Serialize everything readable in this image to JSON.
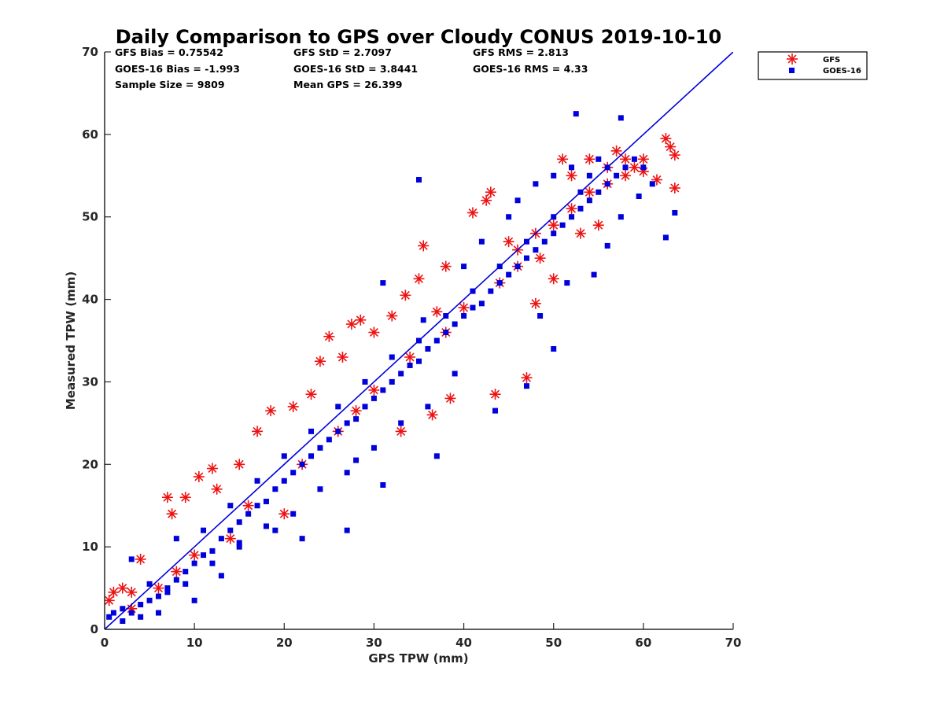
{
  "chart_data": {
    "type": "scatter",
    "title": "Daily Comparison to GPS over Cloudy CONUS 2019-10-10",
    "xlabel": "GPS TPW (mm)",
    "ylabel": "Measured TPW (mm)",
    "xlim": [
      0,
      70
    ],
    "ylim": [
      0,
      70
    ],
    "xticks": [
      "0",
      "10",
      "20",
      "30",
      "40",
      "50",
      "60",
      "70"
    ],
    "yticks": [
      "0",
      "10",
      "20",
      "30",
      "40",
      "50",
      "60",
      "70"
    ],
    "grid": false,
    "legend_position": "outside-top-right",
    "one_to_one_line": true,
    "line_color": "#0000dd",
    "series": [
      {
        "name": "GFS",
        "marker": "asterisk",
        "color": "#ee1111",
        "points": [
          [
            0.5,
            3.5
          ],
          [
            1,
            4.5
          ],
          [
            2,
            5
          ],
          [
            3,
            4.5
          ],
          [
            4,
            8.5
          ],
          [
            7,
            16
          ],
          [
            7.5,
            14
          ],
          [
            10.5,
            18.5
          ],
          [
            12,
            19.5
          ],
          [
            12.5,
            17
          ],
          [
            9,
            16
          ],
          [
            15,
            20
          ],
          [
            17,
            24
          ],
          [
            18.5,
            26.5
          ],
          [
            21,
            27
          ],
          [
            23,
            28.5
          ],
          [
            24,
            32.5
          ],
          [
            25,
            35.5
          ],
          [
            26.5,
            33
          ],
          [
            27.5,
            37
          ],
          [
            28.5,
            37.5
          ],
          [
            30,
            36
          ],
          [
            32,
            38
          ],
          [
            33.5,
            40.5
          ],
          [
            35,
            42.5
          ],
          [
            35.5,
            46.5
          ],
          [
            37,
            38.5
          ],
          [
            38,
            44
          ],
          [
            38.5,
            28
          ],
          [
            41,
            50.5
          ],
          [
            42.5,
            52
          ],
          [
            43,
            53
          ],
          [
            43.5,
            28.5
          ],
          [
            45,
            47
          ],
          [
            46,
            44
          ],
          [
            47,
            30.5
          ],
          [
            48,
            39.5
          ],
          [
            48.5,
            45
          ],
          [
            50,
            42.5
          ],
          [
            51,
            57
          ],
          [
            52,
            55
          ],
          [
            53,
            48
          ],
          [
            54,
            57
          ],
          [
            55,
            49
          ],
          [
            56,
            56
          ],
          [
            57,
            58
          ],
          [
            58,
            55
          ],
          [
            59,
            56
          ],
          [
            60,
            57
          ],
          [
            60,
            55.5
          ],
          [
            61.5,
            54.5
          ],
          [
            62.5,
            59.5
          ],
          [
            63,
            58.5
          ],
          [
            63.5,
            57.5
          ],
          [
            63.5,
            53.5
          ],
          [
            36.5,
            26
          ],
          [
            33,
            24
          ],
          [
            28,
            26.5
          ],
          [
            20,
            14
          ],
          [
            14,
            11
          ],
          [
            10,
            9
          ],
          [
            6,
            5
          ],
          [
            3,
            2.5
          ],
          [
            8,
            7
          ],
          [
            16,
            15
          ],
          [
            22,
            20
          ],
          [
            26,
            24
          ],
          [
            30,
            29
          ],
          [
            34,
            33
          ],
          [
            38,
            36
          ],
          [
            40,
            39
          ],
          [
            44,
            42
          ],
          [
            46,
            46
          ],
          [
            48,
            48
          ],
          [
            50,
            49
          ],
          [
            52,
            51
          ],
          [
            54,
            53
          ],
          [
            56,
            54
          ],
          [
            58,
            57
          ]
        ]
      },
      {
        "name": "GOES-16",
        "marker": "square",
        "color": "#0000dd",
        "points": [
          [
            0.5,
            1.5
          ],
          [
            1,
            2
          ],
          [
            2,
            2.5
          ],
          [
            3,
            2
          ],
          [
            4,
            3
          ],
          [
            5,
            3.5
          ],
          [
            6,
            4
          ],
          [
            7,
            5
          ],
          [
            8,
            6
          ],
          [
            9,
            7
          ],
          [
            10,
            8
          ],
          [
            11,
            9
          ],
          [
            12,
            9.5
          ],
          [
            13,
            11
          ],
          [
            14,
            12
          ],
          [
            15,
            13
          ],
          [
            16,
            14
          ],
          [
            17,
            15
          ],
          [
            18,
            15.5
          ],
          [
            19,
            17
          ],
          [
            20,
            18
          ],
          [
            21,
            19
          ],
          [
            22,
            20
          ],
          [
            23,
            21
          ],
          [
            24,
            22
          ],
          [
            25,
            23
          ],
          [
            26,
            24
          ],
          [
            27,
            25
          ],
          [
            28,
            25.5
          ],
          [
            29,
            27
          ],
          [
            30,
            28
          ],
          [
            31,
            29
          ],
          [
            32,
            30
          ],
          [
            33,
            31
          ],
          [
            34,
            32
          ],
          [
            35,
            32.5
          ],
          [
            36,
            34
          ],
          [
            37,
            35
          ],
          [
            38,
            36
          ],
          [
            39,
            37
          ],
          [
            40,
            38
          ],
          [
            41,
            39
          ],
          [
            42,
            39.5
          ],
          [
            43,
            41
          ],
          [
            44,
            42
          ],
          [
            45,
            43
          ],
          [
            46,
            44
          ],
          [
            47,
            45
          ],
          [
            48,
            46
          ],
          [
            49,
            47
          ],
          [
            50,
            48
          ],
          [
            51,
            49
          ],
          [
            52,
            50
          ],
          [
            53,
            51
          ],
          [
            54,
            52
          ],
          [
            55,
            53
          ],
          [
            56,
            54
          ],
          [
            57,
            55
          ],
          [
            58,
            56
          ],
          [
            59,
            57
          ],
          [
            60,
            56
          ],
          [
            62.5,
            47.5
          ],
          [
            63.5,
            50.5
          ],
          [
            52.5,
            62.5
          ],
          [
            57.5,
            62
          ],
          [
            35,
            54.5
          ],
          [
            31,
            42
          ],
          [
            35.5,
            37.5
          ],
          [
            37,
            21
          ],
          [
            31,
            17.5
          ],
          [
            28,
            20.5
          ],
          [
            27,
            12
          ],
          [
            22,
            11
          ],
          [
            19,
            12
          ],
          [
            15,
            10
          ],
          [
            13,
            6.5
          ],
          [
            10,
            3.5
          ],
          [
            6,
            2
          ],
          [
            4,
            1.5
          ],
          [
            2,
            1
          ],
          [
            3,
            8.5
          ],
          [
            5,
            5.5
          ],
          [
            8,
            11
          ],
          [
            11,
            12
          ],
          [
            14,
            15
          ],
          [
            17,
            18
          ],
          [
            20,
            21
          ],
          [
            23,
            24
          ],
          [
            26,
            27
          ],
          [
            29,
            30
          ],
          [
            32,
            33
          ],
          [
            35,
            35
          ],
          [
            38,
            38
          ],
          [
            41,
            41
          ],
          [
            44,
            44
          ],
          [
            47,
            47
          ],
          [
            50,
            50
          ],
          [
            53,
            53
          ],
          [
            56,
            56
          ],
          [
            43.5,
            26.5
          ],
          [
            47,
            29.5
          ],
          [
            50,
            34
          ],
          [
            48.5,
            38
          ],
          [
            51.5,
            42
          ],
          [
            54.5,
            43
          ],
          [
            56,
            46.5
          ],
          [
            57.5,
            50
          ],
          [
            59.5,
            52.5
          ],
          [
            61,
            54
          ],
          [
            39,
            31
          ],
          [
            36,
            27
          ],
          [
            33,
            25
          ],
          [
            30,
            22
          ],
          [
            27,
            19
          ],
          [
            24,
            17
          ],
          [
            21,
            14
          ],
          [
            18,
            12.5
          ],
          [
            15,
            10.5
          ],
          [
            12,
            8
          ],
          [
            9,
            5.5
          ],
          [
            7,
            4.5
          ],
          [
            45,
            50
          ],
          [
            42,
            47
          ],
          [
            40,
            44
          ],
          [
            46,
            52
          ],
          [
            48,
            54
          ],
          [
            50,
            55
          ],
          [
            52,
            56
          ],
          [
            54,
            55
          ],
          [
            55,
            57
          ]
        ]
      }
    ]
  },
  "stats": [
    [
      "GFS Bias = 0.75542",
      "GFS StD = 2.7097",
      "GFS RMS = 2.813"
    ],
    [
      "GOES-16 Bias = -1.993",
      "GOES-16 StD = 3.8441",
      "GOES-16 RMS = 4.33"
    ],
    [
      "Sample Size = 9809",
      "Mean GPS = 26.399",
      ""
    ]
  ]
}
